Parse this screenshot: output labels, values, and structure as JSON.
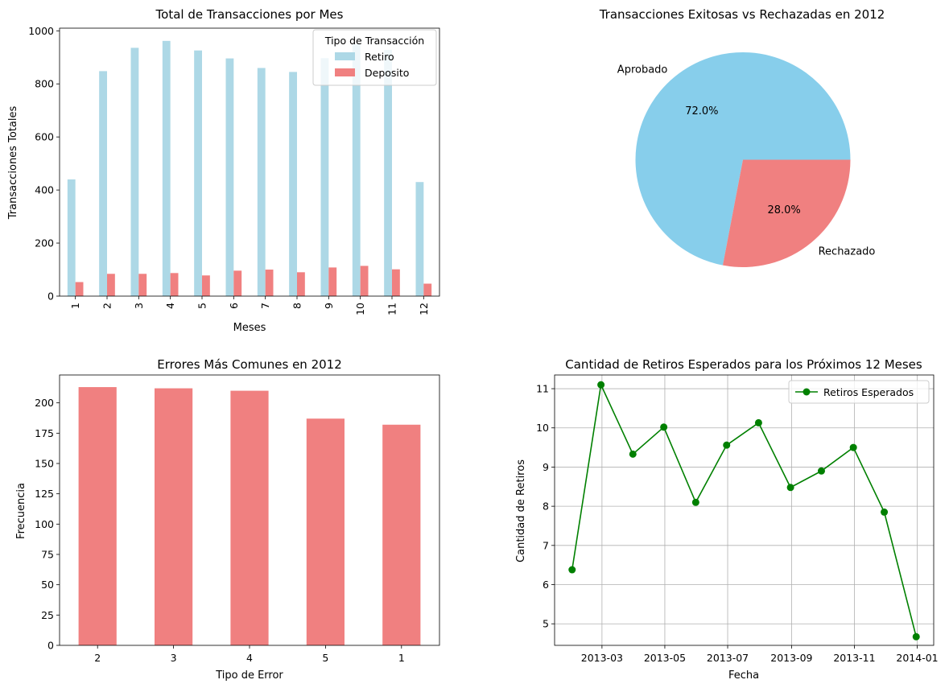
{
  "colors": {
    "retiro": "#add8e6",
    "deposito": "#f08080",
    "aprobado": "#87ceeb",
    "rechazado": "#f08080",
    "errores": "#f08080",
    "line": "#008000",
    "grid": "#b0b0b0"
  },
  "chart_data": [
    {
      "type": "bar",
      "title": "Total de Transacciones por Mes",
      "xlabel": "Meses",
      "ylabel": "Transacciones Totales",
      "categories": [
        "1",
        "2",
        "3",
        "4",
        "5",
        "6",
        "7",
        "8",
        "9",
        "10",
        "11",
        "12"
      ],
      "series": [
        {
          "name": "Retiro",
          "values": [
            440,
            848,
            936,
            962,
            926,
            896,
            860,
            845,
            897,
            950,
            928,
            430
          ]
        },
        {
          "name": "Deposito",
          "values": [
            53,
            84,
            84,
            87,
            78,
            96,
            100,
            90,
            108,
            114,
            101,
            47
          ]
        }
      ],
      "ylim": [
        0,
        1010
      ],
      "yticks": [
        0,
        200,
        400,
        600,
        800,
        1000
      ],
      "x_tick_rotation": "vertical",
      "grid": false,
      "legend": {
        "title": "Tipo de Transacción",
        "placement": "top-right"
      }
    },
    {
      "type": "pie",
      "title": "Transacciones Exitosas vs Rechazadas en 2012",
      "labels": [
        "Aprobado",
        "Rechazado"
      ],
      "values": [
        72.0,
        28.0
      ],
      "value_labels": [
        "72.0%",
        "28.0%"
      ]
    },
    {
      "type": "bar",
      "title": "Errores Más Comunes en 2012",
      "xlabel": "Tipo de Error",
      "ylabel": "Frecuencia",
      "categories": [
        "2",
        "3",
        "4",
        "5",
        "1"
      ],
      "values": [
        213,
        212,
        210,
        187,
        182
      ],
      "ylim": [
        0,
        223
      ],
      "yticks": [
        0,
        25,
        50,
        75,
        100,
        125,
        150,
        175,
        200
      ],
      "grid": false
    },
    {
      "type": "line",
      "title": "Cantidad de Retiros Esperados para los Próximos 12 Meses",
      "xlabel": "Fecha",
      "ylabel": "Cantidad de Retiros",
      "series": [
        {
          "name": "Retiros Esperados",
          "x": [
            "2013-01-31",
            "2013-02-28",
            "2013-03-31",
            "2013-04-30",
            "2013-05-31",
            "2013-06-30",
            "2013-07-31",
            "2013-08-31",
            "2013-09-30",
            "2013-10-31",
            "2013-11-30",
            "2013-12-31"
          ],
          "values": [
            6.38,
            11.1,
            9.33,
            10.02,
            8.1,
            9.56,
            10.13,
            8.48,
            8.9,
            9.5,
            7.85,
            4.67
          ]
        }
      ],
      "xlim": [
        "2013-01-14",
        "2014-01-17"
      ],
      "ylim": [
        4.45,
        11.35
      ],
      "xticks": [
        "2013-03",
        "2013-05",
        "2013-07",
        "2013-09",
        "2013-11",
        "2014-01"
      ],
      "yticks": [
        5,
        6,
        7,
        8,
        9,
        10,
        11
      ],
      "grid": true,
      "legend": {
        "placement": "top-right"
      }
    }
  ]
}
